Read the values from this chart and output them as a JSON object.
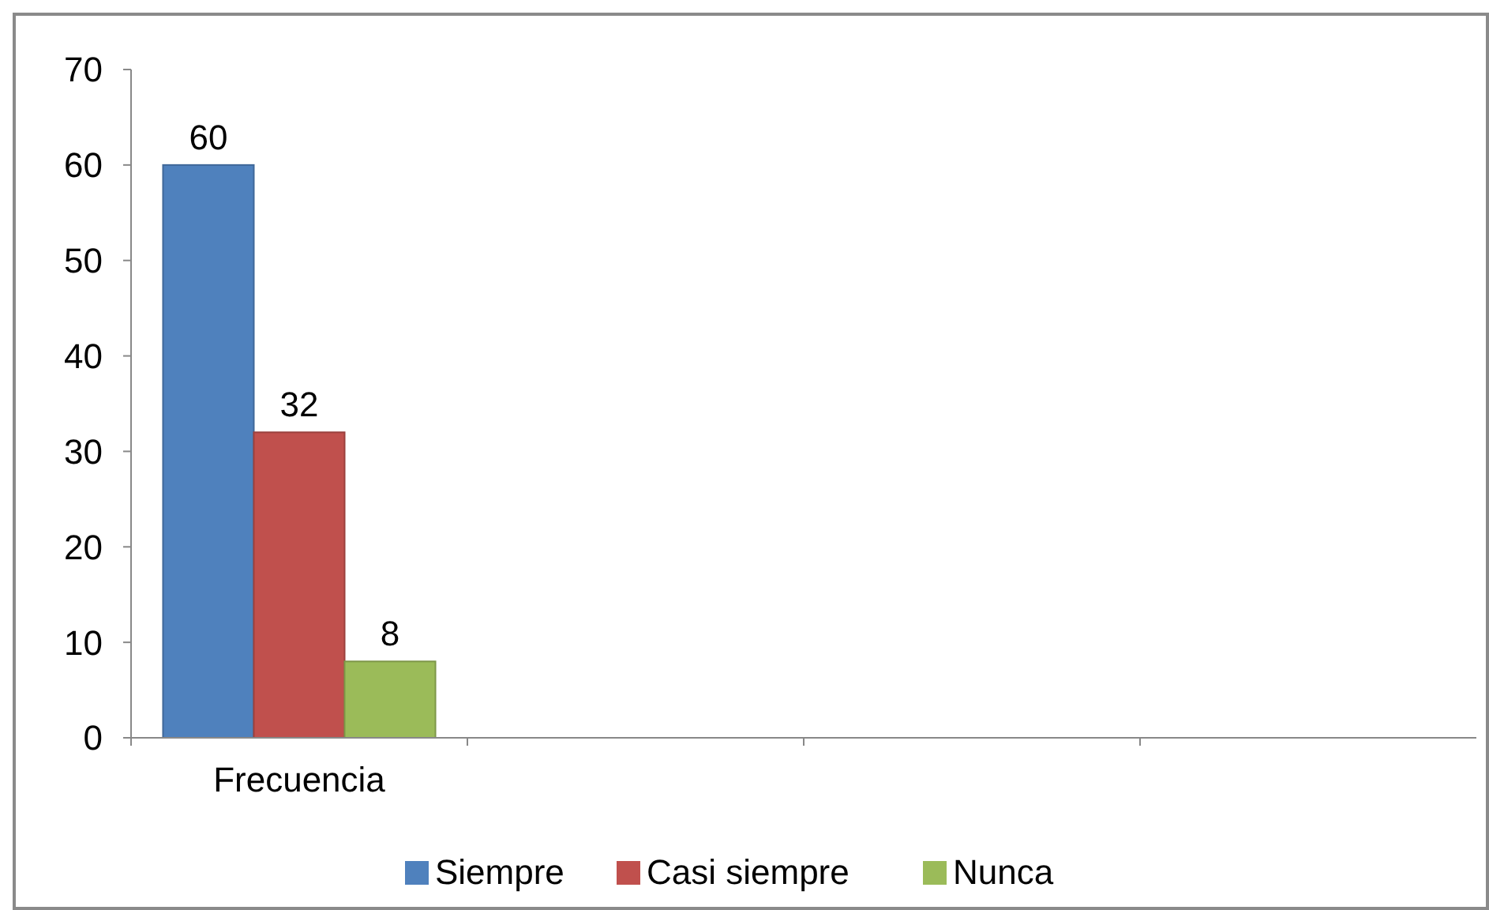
{
  "chart_data": {
    "type": "bar",
    "categories": [
      "Frecuencia",
      null,
      null,
      null
    ],
    "series": [
      {
        "name": "Siempre",
        "color": "#4f81bd",
        "values": [
          60,
          null,
          null,
          null
        ]
      },
      {
        "name": "Casi siempre",
        "color": "#c0504d",
        "values": [
          32,
          null,
          null,
          null
        ]
      },
      {
        "name": "Nunca",
        "color": "#9bbb59",
        "values": [
          8,
          null,
          null,
          null
        ]
      }
    ],
    "ylim": [
      0,
      70
    ],
    "yticks": [
      0,
      10,
      20,
      30,
      40,
      50,
      60,
      70
    ],
    "data_labels": true,
    "grid": false,
    "legend": "bottom"
  }
}
